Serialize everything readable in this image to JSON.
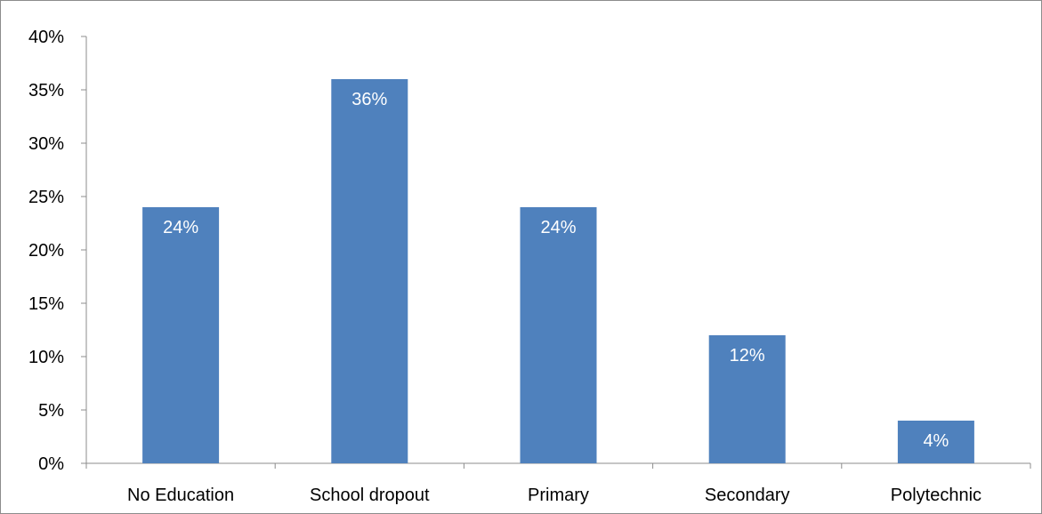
{
  "chart_data": {
    "type": "bar",
    "title": "",
    "xlabel": "",
    "ylabel": "",
    "categories": [
      "No Education",
      "School dropout",
      "Primary",
      "Secondary",
      "Polytechnic"
    ],
    "values": [
      24,
      36,
      24,
      12,
      4
    ],
    "data_labels": [
      "24%",
      "36%",
      "24%",
      "12%",
      "4%"
    ],
    "ylim": [
      0,
      40
    ],
    "yticks": [
      0,
      5,
      10,
      15,
      20,
      25,
      30,
      35,
      40
    ],
    "ytick_labels": [
      "0%",
      "5%",
      "10%",
      "15%",
      "20%",
      "25%",
      "30%",
      "35%",
      "40%"
    ],
    "grid": false,
    "legend": "none",
    "bar_color": "#4f81bd"
  }
}
